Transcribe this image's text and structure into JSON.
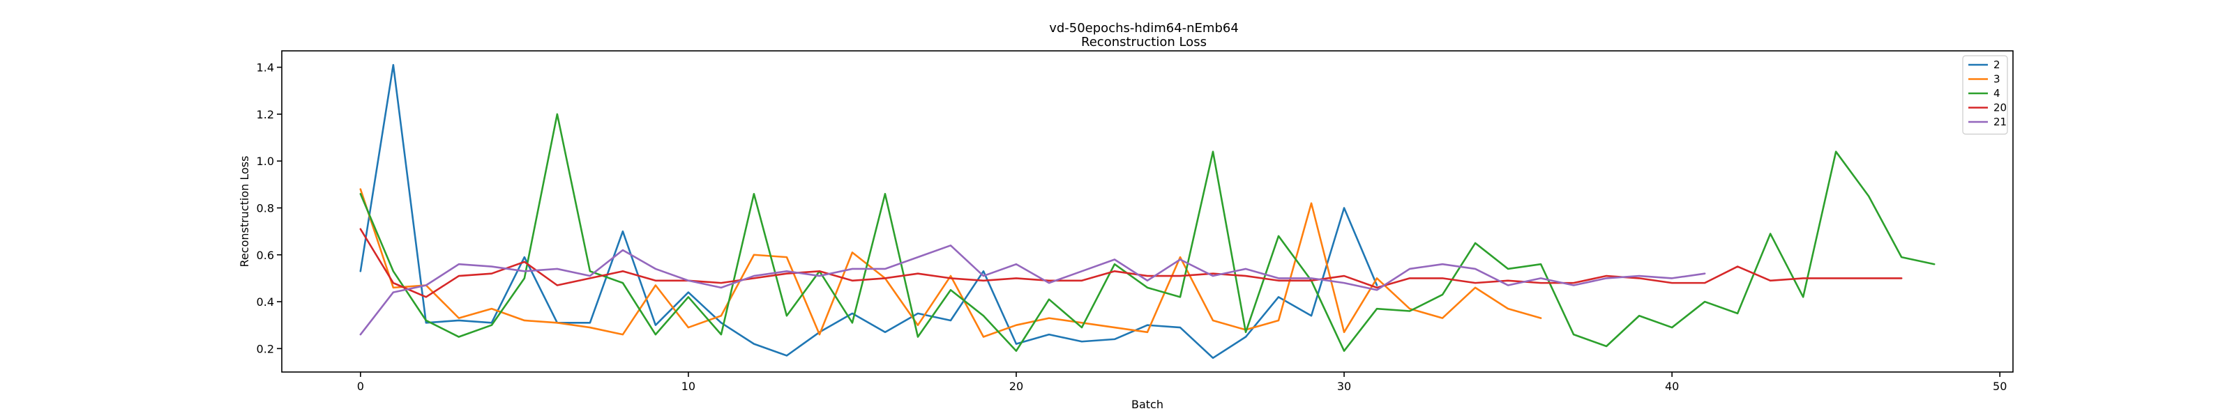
{
  "chart_data": {
    "type": "line",
    "title": "vd-50epochs-hdim64-nEmb64",
    "subtitle": "Reconstruction Loss",
    "xlabel": "Batch",
    "ylabel": "Reconstruction Loss",
    "xlim": [
      -2.4,
      50.4
    ],
    "ylim": [
      0.1,
      1.47
    ],
    "xticks": [
      0,
      10,
      20,
      30,
      40,
      50
    ],
    "yticks": [
      0.2,
      0.4,
      0.6,
      0.8,
      1.0,
      1.2,
      1.4
    ],
    "ytick_labels": [
      "0.2",
      "0.4",
      "0.6",
      "0.8",
      "1.0",
      "1.2",
      "1.4"
    ],
    "grid": false,
    "legend_position": "top-right",
    "series": [
      {
        "name": "2",
        "color": "#1f77b4",
        "values": [
          0.53,
          1.41,
          0.31,
          0.32,
          0.31,
          0.59,
          0.31,
          0.31,
          0.7,
          0.3,
          0.44,
          0.31,
          0.22,
          0.17,
          0.27,
          0.35,
          0.27,
          0.35,
          0.32,
          0.53,
          0.22,
          0.26,
          0.23,
          0.24,
          0.3,
          0.29,
          0.16,
          0.25,
          0.42,
          0.34,
          0.8,
          0.47
        ]
      },
      {
        "name": "3",
        "color": "#ff7f0e",
        "values": [
          0.88,
          0.46,
          0.47,
          0.33,
          0.37,
          0.32,
          0.31,
          0.29,
          0.26,
          0.47,
          0.29,
          0.34,
          0.6,
          0.59,
          0.26,
          0.61,
          0.5,
          0.3,
          0.51,
          0.25,
          0.3,
          0.33,
          0.31,
          0.29,
          0.27,
          0.59,
          0.32,
          0.28,
          0.32,
          0.82,
          0.27,
          0.5,
          0.37,
          0.33,
          0.46,
          0.37,
          0.33
        ]
      },
      {
        "name": "4",
        "color": "#2ca02c",
        "values": [
          0.86,
          0.53,
          0.32,
          0.25,
          0.3,
          0.5,
          1.2,
          0.53,
          0.48,
          0.26,
          0.42,
          0.26,
          0.86,
          0.34,
          0.53,
          0.31,
          0.86,
          0.25,
          0.45,
          0.34,
          0.19,
          0.41,
          0.29,
          0.56,
          0.46,
          0.42,
          1.04,
          0.27,
          0.68,
          0.49,
          0.19,
          0.37,
          0.36,
          0.43,
          0.65,
          0.54,
          0.56,
          0.26,
          0.21,
          0.34,
          0.29,
          0.4,
          0.35,
          0.69,
          0.42,
          1.04,
          0.85,
          0.59,
          0.56
        ]
      },
      {
        "name": "20",
        "color": "#d62728",
        "values": [
          0.71,
          0.48,
          0.42,
          0.51,
          0.52,
          0.57,
          0.47,
          0.5,
          0.53,
          0.49,
          0.49,
          0.48,
          0.5,
          0.52,
          0.53,
          0.49,
          0.5,
          0.52,
          0.5,
          0.49,
          0.5,
          0.49,
          0.49,
          0.53,
          0.51,
          0.51,
          0.52,
          0.51,
          0.49,
          0.49,
          0.51,
          0.46,
          0.5,
          0.5,
          0.48,
          0.49,
          0.48,
          0.48,
          0.51,
          0.5,
          0.48,
          0.48,
          0.55,
          0.49,
          0.5,
          0.5,
          0.5,
          0.5
        ]
      },
      {
        "name": "21",
        "color": "#9467bd",
        "values": [
          0.26,
          0.44,
          0.47,
          0.56,
          0.55,
          0.53,
          0.54,
          0.51,
          0.62,
          0.54,
          0.49,
          0.46,
          0.51,
          0.53,
          0.51,
          0.54,
          0.54,
          0.59,
          0.64,
          0.51,
          0.56,
          0.48,
          0.53,
          0.58,
          0.49,
          0.58,
          0.51,
          0.54,
          0.5,
          0.5,
          0.48,
          0.45,
          0.54,
          0.56,
          0.54,
          0.47,
          0.5,
          0.47,
          0.5,
          0.51,
          0.5,
          0.52
        ]
      }
    ]
  }
}
